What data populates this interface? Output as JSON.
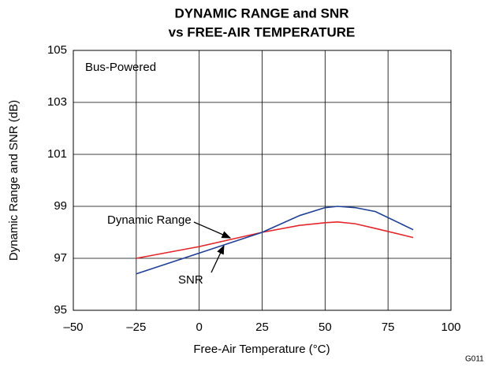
{
  "chart_data": {
    "type": "line",
    "title": [
      "DYNAMIC RANGE and SNR",
      "vs FREE-AIR TEMPERATURE"
    ],
    "x_label": "Free-Air Temperature (°C)",
    "y_label": "Dynamic Range and SNR (dB)",
    "annotations": [
      "Bus-Powered",
      "Dynamic Range",
      "SNR",
      "G011"
    ],
    "x": [
      -25,
      0,
      25,
      40,
      50,
      55,
      62,
      70,
      85
    ],
    "series": [
      {
        "name": "Dynamic Range",
        "color": "#e3262b",
        "values": [
          97.0,
          97.45,
          98.0,
          98.27,
          98.37,
          98.4,
          98.33,
          98.15,
          97.8
        ]
      },
      {
        "name": "SNR",
        "color": "#1f3f94",
        "values": [
          96.4,
          97.2,
          98.0,
          98.65,
          98.95,
          99.0,
          98.95,
          98.8,
          98.1
        ]
      }
    ],
    "xlim": [
      -50,
      100
    ],
    "xticks": [
      {
        "value": -50,
        "label": "–50"
      },
      {
        "value": -25,
        "label": "–25"
      },
      0,
      25,
      50,
      75,
      100
    ],
    "ylim": [
      95,
      105
    ],
    "yticks": [
      95,
      97,
      99,
      101,
      103,
      105
    ],
    "grid": true
  }
}
